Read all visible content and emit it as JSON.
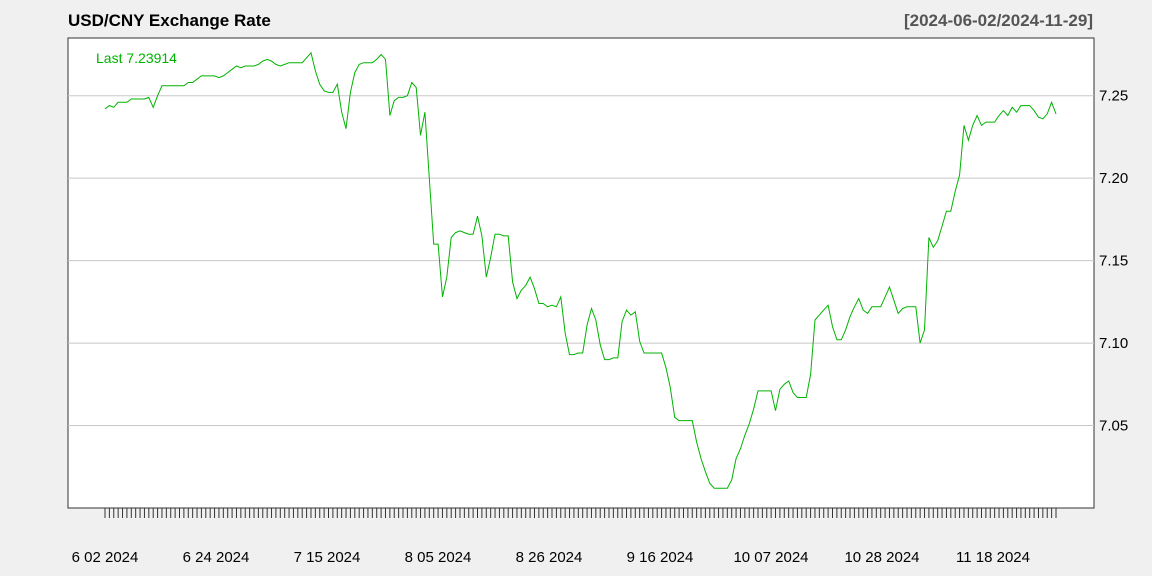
{
  "chart_data": {
    "type": "line",
    "title": "USD/CNY Exchange Rate",
    "date_range": "[2024-06-02/2024-11-29]",
    "last_label": "Last 7.23914",
    "line_color": "#00b300",
    "grid": true,
    "ylim": [
      7.0,
      7.285
    ],
    "y_ticks": [
      7.05,
      7.1,
      7.15,
      7.2,
      7.25
    ],
    "y_tick_labels": [
      "7.05",
      "7.10",
      "7.15",
      "7.20",
      "7.25"
    ],
    "x_tick_labels": [
      "6 02 2024",
      "6 24 2024",
      "7 15 2024",
      "8 05 2024",
      "8 26 2024",
      "9 16 2024",
      "10 07 2024",
      "10 28 2024",
      "11 18 2024"
    ],
    "series": [
      {
        "values": [
          7.242,
          7.244,
          7.243,
          7.246,
          7.246,
          7.246,
          7.248,
          7.248,
          7.248,
          7.248,
          7.249,
          7.243,
          7.25,
          7.256,
          7.256,
          7.256,
          7.256,
          7.256,
          7.256,
          7.258,
          7.258,
          7.26,
          7.262,
          7.262,
          7.262,
          7.262,
          7.261,
          7.262,
          7.264,
          7.266,
          7.268,
          7.267,
          7.268,
          7.268,
          7.268,
          7.269,
          7.271,
          7.272,
          7.271,
          7.269,
          7.268,
          7.269,
          7.27,
          7.27,
          7.27,
          7.27,
          7.273,
          7.276,
          7.265,
          7.257,
          7.253,
          7.252,
          7.252,
          7.257,
          7.24,
          7.23,
          7.252,
          7.264,
          7.269,
          7.27,
          7.27,
          7.27,
          7.272,
          7.275,
          7.272,
          7.238,
          7.247,
          7.249,
          7.249,
          7.25,
          7.258,
          7.255,
          7.226,
          7.24,
          7.2,
          7.16,
          7.16,
          7.128,
          7.14,
          7.164,
          7.167,
          7.168,
          7.167,
          7.166,
          7.166,
          7.177,
          7.165,
          7.14,
          7.152,
          7.166,
          7.166,
          7.165,
          7.165,
          7.137,
          7.127,
          7.132,
          7.135,
          7.14,
          7.133,
          7.124,
          7.124,
          7.122,
          7.123,
          7.122,
          7.128,
          7.106,
          7.093,
          7.093,
          7.094,
          7.094,
          7.111,
          7.121,
          7.114,
          7.099,
          7.09,
          7.09,
          7.091,
          7.091,
          7.113,
          7.12,
          7.117,
          7.119,
          7.101,
          7.094,
          7.094,
          7.094,
          7.094,
          7.094,
          7.085,
          7.073,
          7.055,
          7.053,
          7.053,
          7.053,
          7.053,
          7.04,
          7.03,
          7.022,
          7.015,
          7.012,
          7.012,
          7.012,
          7.012,
          7.017,
          7.03,
          7.036,
          7.044,
          7.051,
          7.06,
          7.071,
          7.071,
          7.071,
          7.071,
          7.059,
          7.072,
          7.075,
          7.077,
          7.07,
          7.067,
          7.067,
          7.067,
          7.081,
          7.114,
          7.117,
          7.12,
          7.123,
          7.11,
          7.102,
          7.102,
          7.108,
          7.116,
          7.122,
          7.127,
          7.12,
          7.118,
          7.122,
          7.122,
          7.122,
          7.128,
          7.134,
          7.126,
          7.118,
          7.121,
          7.122,
          7.122,
          7.122,
          7.1,
          7.108,
          7.164,
          7.158,
          7.162,
          7.171,
          7.18,
          7.18,
          7.192,
          7.202,
          7.232,
          7.223,
          7.232,
          7.238,
          7.232,
          7.234,
          7.234,
          7.234,
          7.238,
          7.241,
          7.238,
          7.243,
          7.24,
          7.244,
          7.244,
          7.244,
          7.241,
          7.237,
          7.236,
          7.239,
          7.246,
          7.239
        ]
      }
    ]
  }
}
